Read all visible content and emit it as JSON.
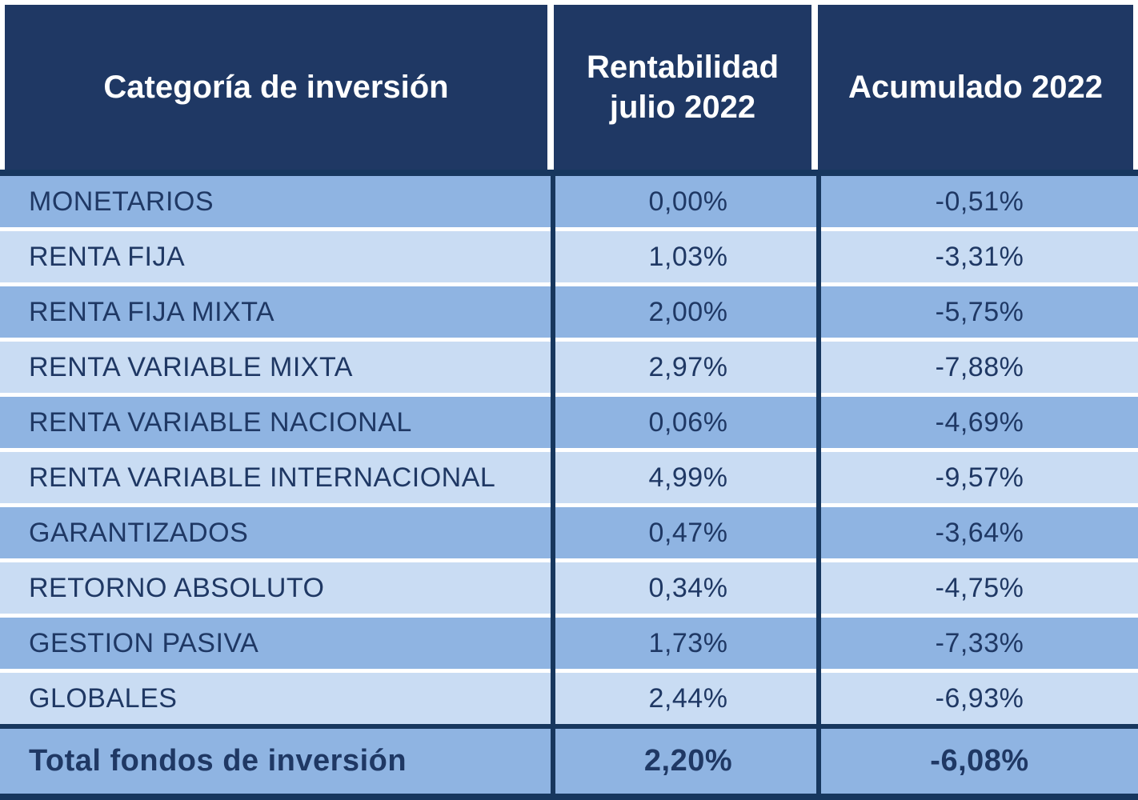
{
  "colors": {
    "page_bg": "#FFFFFF",
    "header_bg": "#1F3864",
    "header_text": "#FFFFFF",
    "row_medium": "#8FB4E2",
    "row_light": "#C9DCF3",
    "text_navy": "#1F3864",
    "divider": "#17375E"
  },
  "chart_data": {
    "type": "table",
    "columns": [
      "Categoría de inversión",
      "Rentabilidad julio 2022",
      "Acumulado 2022"
    ],
    "rows": [
      {
        "category": "MONETARIOS",
        "julio": "0,00%",
        "acumulado": "-0,51%"
      },
      {
        "category": "RENTA FIJA",
        "julio": "1,03%",
        "acumulado": "-3,31%"
      },
      {
        "category": "RENTA FIJA MIXTA",
        "julio": "2,00%",
        "acumulado": "-5,75%"
      },
      {
        "category": "RENTA VARIABLE MIXTA",
        "julio": "2,97%",
        "acumulado": "-7,88%"
      },
      {
        "category": "RENTA VARIABLE NACIONAL",
        "julio": "0,06%",
        "acumulado": "-4,69%"
      },
      {
        "category": "RENTA VARIABLE INTERNACIONAL",
        "julio": "4,99%",
        "acumulado": "-9,57%"
      },
      {
        "category": "GARANTIZADOS",
        "julio": "0,47%",
        "acumulado": "-3,64%"
      },
      {
        "category": "RETORNO ABSOLUTO",
        "julio": "0,34%",
        "acumulado": "-4,75%"
      },
      {
        "category": "GESTION PASIVA",
        "julio": "1,73%",
        "acumulado": "-7,33%"
      },
      {
        "category": "GLOBALES",
        "julio": "2,44%",
        "acumulado": "-6,93%"
      }
    ],
    "total_row": {
      "category": "Total fondos de inversión",
      "julio": "2,20%",
      "acumulado": "-6,08%"
    }
  }
}
